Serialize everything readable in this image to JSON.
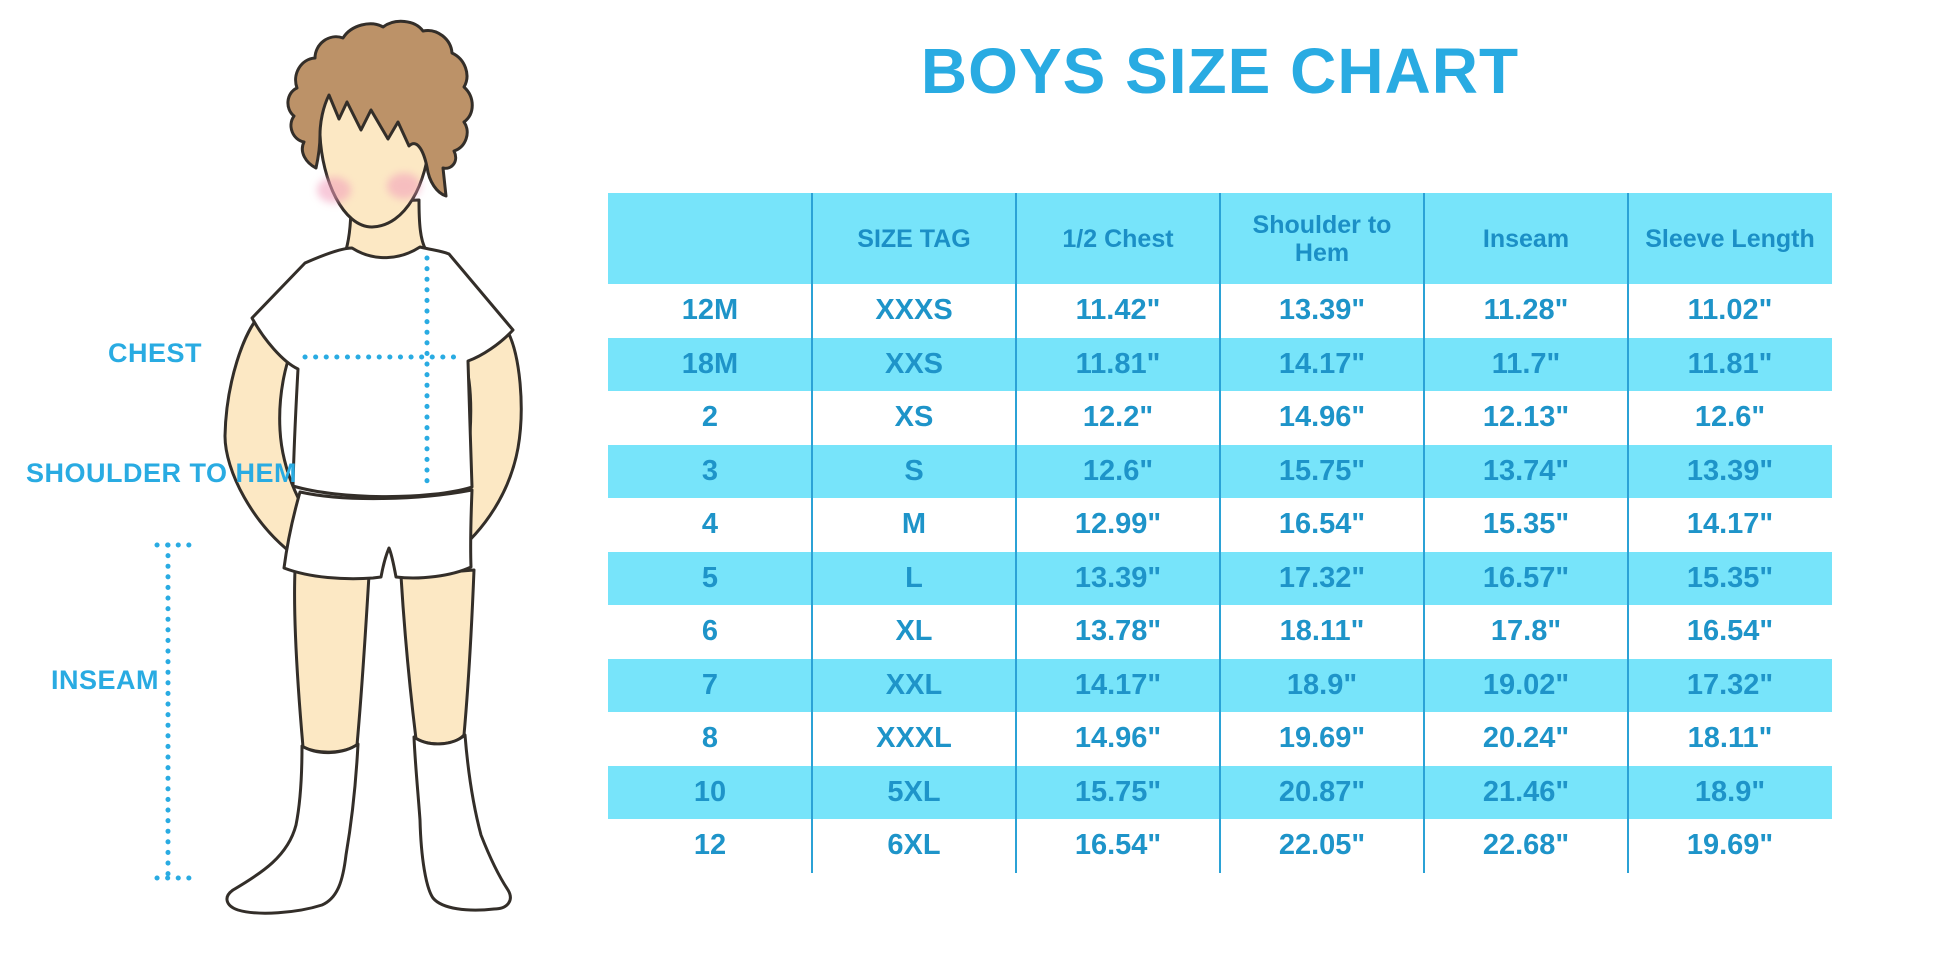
{
  "title": "BOYS SIZE CHART",
  "figure": {
    "chest_label": "CHEST",
    "shoulder_to_hem_label": "SHOULDER TO HEM",
    "inseam_label": "INSEAM"
  },
  "table": {
    "headers": [
      "",
      "SIZE TAG",
      "1/2 Chest",
      "Shoulder to Hem",
      "Inseam",
      "Sleeve Length"
    ],
    "rows": [
      [
        "12M",
        "XXXS",
        "11.42\"",
        "13.39\"",
        "11.28\"",
        "11.02\""
      ],
      [
        "18M",
        "XXS",
        "11.81\"",
        "14.17\"",
        "11.7\"",
        "11.81\""
      ],
      [
        "2",
        "XS",
        "12.2\"",
        "14.96\"",
        "12.13\"",
        "12.6\""
      ],
      [
        "3",
        "S",
        "12.6\"",
        "15.75\"",
        "13.74\"",
        "13.39\""
      ],
      [
        "4",
        "M",
        "12.99\"",
        "16.54\"",
        "15.35\"",
        "14.17\""
      ],
      [
        "5",
        "L",
        "13.39\"",
        "17.32\"",
        "16.57\"",
        "15.35\""
      ],
      [
        "6",
        "XL",
        "13.78\"",
        "18.11\"",
        "17.8\"",
        "16.54\""
      ],
      [
        "7",
        "XXL",
        "14.17\"",
        "18.9\"",
        "19.02\"",
        "17.32\""
      ],
      [
        "8",
        "XXXL",
        "14.96\"",
        "19.69\"",
        "20.24\"",
        "18.11\""
      ],
      [
        "10",
        "5XL",
        "15.75\"",
        "20.87\"",
        "21.46\"",
        "18.9\""
      ],
      [
        "12",
        "6XL",
        "16.54\"",
        "22.05\"",
        "22.68\"",
        "19.69\""
      ]
    ]
  },
  "colors": {
    "accent_blue": "#29ABE2",
    "table_cyan": "#77E4FA",
    "divider_blue": "#2BA2D6",
    "cell_text_blue": "#1E94C9",
    "header_text_blue": "#1B8FC6",
    "hair_brown": "#BC9268",
    "skin": "#FCE8C4",
    "blush_pink": "#F29DBB",
    "outline": "#332E29"
  }
}
